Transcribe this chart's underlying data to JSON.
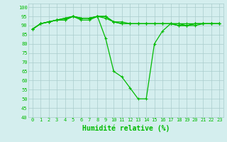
{
  "x": [
    0,
    1,
    2,
    3,
    4,
    5,
    6,
    7,
    8,
    9,
    10,
    11,
    12,
    13,
    14,
    15,
    16,
    17,
    18,
    19,
    20,
    21,
    22,
    23
  ],
  "y_main": [
    88,
    91,
    92,
    93,
    93,
    95,
    93,
    93,
    95,
    83,
    65,
    62,
    56,
    50,
    50,
    80,
    87,
    91,
    90,
    90,
    91,
    91,
    91,
    91
  ],
  "y_top1": [
    88,
    91,
    92,
    93,
    94,
    95,
    94,
    94,
    95,
    95,
    92,
    92,
    91,
    91,
    91,
    91,
    91,
    91,
    90,
    90,
    91,
    91,
    91,
    91
  ],
  "y_top2": [
    88,
    91,
    92,
    93,
    94,
    95,
    94,
    94,
    95,
    95,
    92,
    91,
    91,
    91,
    91,
    91,
    91,
    91,
    91,
    91,
    91,
    91,
    91,
    91
  ],
  "y_top3": [
    88,
    91,
    92,
    93,
    93,
    95,
    94,
    94,
    95,
    94,
    92,
    91,
    91,
    91,
    91,
    91,
    91,
    91,
    91,
    90,
    90,
    91,
    91,
    91
  ],
  "line_color": "#00bb00",
  "bg_color": "#d4eeee",
  "grid_color": "#aacccc",
  "xlabel": "Humidité relative (%)",
  "ylim": [
    40,
    102
  ],
  "xlim": [
    -0.5,
    23.5
  ],
  "yticks": [
    40,
    45,
    50,
    55,
    60,
    65,
    70,
    75,
    80,
    85,
    90,
    95,
    100
  ],
  "xticks": [
    0,
    1,
    2,
    3,
    4,
    5,
    6,
    7,
    8,
    9,
    10,
    11,
    12,
    13,
    14,
    15,
    16,
    17,
    18,
    19,
    20,
    21,
    22,
    23
  ],
  "markersize": 3,
  "linewidth": 0.9,
  "xlabel_fontsize": 7,
  "tick_fontsize": 5
}
